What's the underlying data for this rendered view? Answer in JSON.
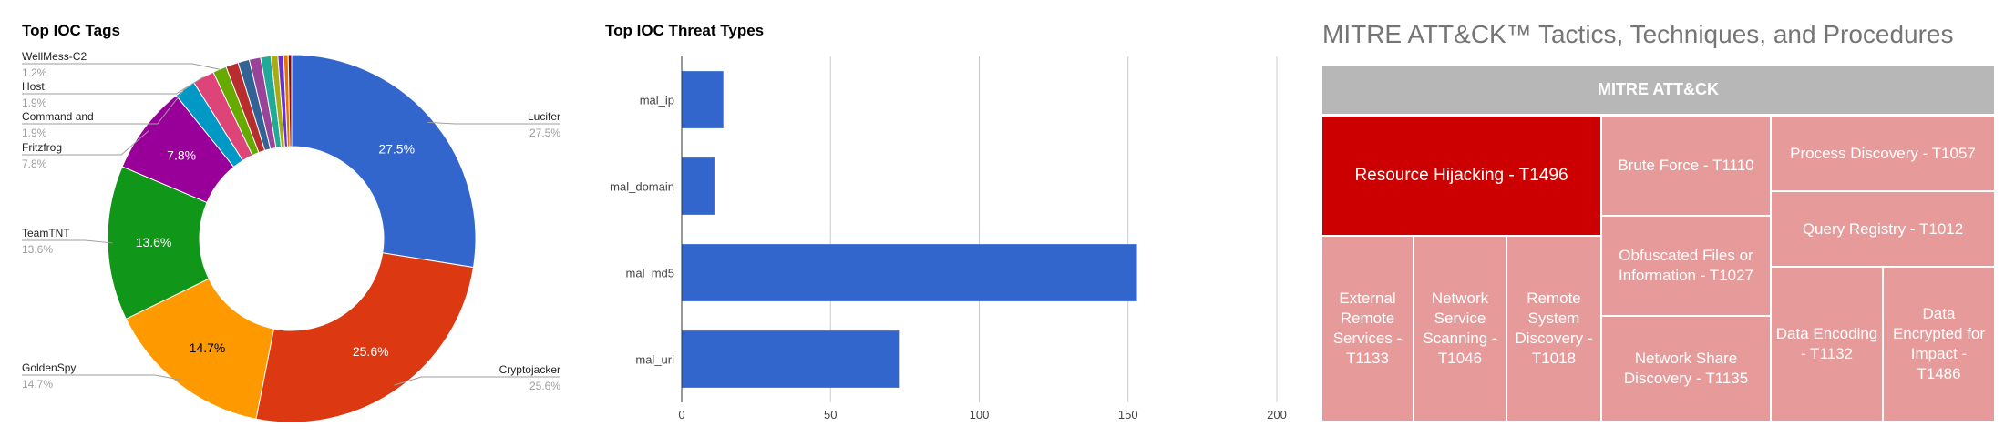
{
  "donut": {
    "title": "Top IOC Tags",
    "chart_data": {
      "type": "pie",
      "title": "Top IOC Tags",
      "slices": [
        {
          "label": "Lucifer",
          "value": 27.5,
          "color": "#3366cc"
        },
        {
          "label": "Cryptojacker",
          "value": 25.6,
          "color": "#dc3912"
        },
        {
          "label": "GoldenSpy",
          "value": 14.7,
          "color": "#ff9900"
        },
        {
          "label": "TeamTNT",
          "value": 13.6,
          "color": "#109618"
        },
        {
          "label": "Fritzfrog",
          "value": 7.8,
          "color": "#990099"
        },
        {
          "label": "",
          "value": 1.9,
          "color": "#0099c6"
        },
        {
          "label": "",
          "value": 1.9,
          "color": "#dd4477"
        },
        {
          "label": "",
          "value": 1.2,
          "color": "#66aa00"
        },
        {
          "label": "",
          "value": 1.1,
          "color": "#b82e2e"
        },
        {
          "label": "",
          "value": 1.0,
          "color": "#316395"
        },
        {
          "label": "",
          "value": 1.0,
          "color": "#994499"
        },
        {
          "label": "",
          "value": 0.9,
          "color": "#22aa99"
        },
        {
          "label": "",
          "value": 0.6,
          "color": "#aaaa11"
        },
        {
          "label": "",
          "value": 0.5,
          "color": "#6633cc"
        },
        {
          "label": "",
          "value": 0.4,
          "color": "#e67300"
        },
        {
          "label": "",
          "value": 0.3,
          "color": "#8b0707"
        }
      ],
      "inner_labels": [
        "27.5%",
        "25.6%",
        "14.7%",
        "13.6%",
        "7.8%"
      ],
      "callouts": [
        {
          "name": "Lucifer",
          "pct": "27.5%"
        },
        {
          "name": "Cryptojacker",
          "pct": "25.6%"
        },
        {
          "name": "GoldenSpy",
          "pct": "14.7%"
        },
        {
          "name": "TeamTNT",
          "pct": "13.6%"
        },
        {
          "name": "Fritzfrog",
          "pct": "7.8%"
        },
        {
          "name": "Command and",
          "pct": "1.9%"
        },
        {
          "name": "Host",
          "pct": "1.9%"
        },
        {
          "name": "WellMess-C2",
          "pct": "1.2%"
        }
      ]
    }
  },
  "bars": {
    "title": "Top IOC Threat Types",
    "chart_data": {
      "type": "bar",
      "orientation": "horizontal",
      "title": "Top IOC Threat Types",
      "categories": [
        "mal_ip",
        "mal_domain",
        "mal_md5",
        "mal_url"
      ],
      "values": [
        14,
        11,
        153,
        73
      ],
      "xlim": [
        0,
        200
      ],
      "xticks": [
        0,
        50,
        100,
        150,
        200
      ],
      "color": "#3366cc",
      "grid": true
    }
  },
  "treemap": {
    "title": "MITRE ATT&CK™ Tactics, Techniques, and Procedures",
    "header": "MITRE ATT&CK",
    "cells": {
      "resource_hijacking": "Resource Hijacking - T1496",
      "brute_force": "Brute Force - T1110",
      "process_discovery": "Process Discovery - T1057",
      "obfuscated_files": "Obfuscated Files or Information - T1027",
      "query_registry": "Query Registry - T1012",
      "external_remote": "External Remote Services - T1133",
      "network_service_scanning": "Network Service Scanning - T1046",
      "remote_system_discovery": "Remote System Discovery - T1018",
      "network_share_discovery": "Network Share Discovery - T1135",
      "data_encoding": "Data Encoding - T1132",
      "data_encrypted": "Data Encrypted for Impact - T1486"
    },
    "colors": {
      "highlight": "#cc0000",
      "normal": "#e69a9a",
      "header": "#b7b7b7"
    }
  }
}
